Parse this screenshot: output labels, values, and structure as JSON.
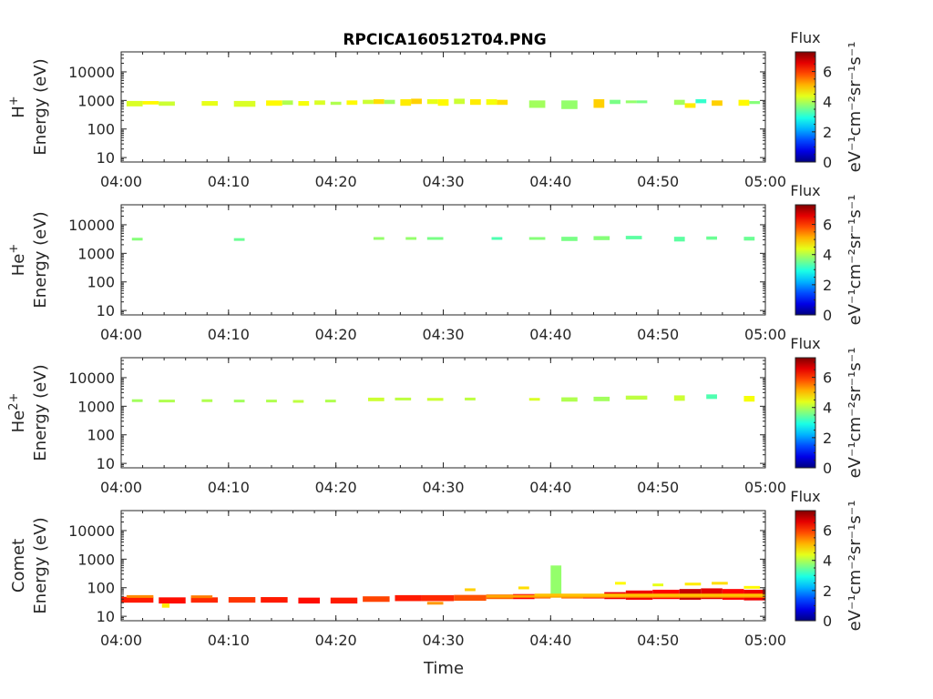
{
  "title": "RPCICA160512T04.PNG",
  "xlabel": "Time",
  "colorbar": {
    "label": "Flux",
    "units": "eV⁻¹cm⁻²sr⁻¹s⁻¹",
    "range": [
      0,
      7.3
    ],
    "ticks": [
      "0",
      "2",
      "4",
      "6"
    ],
    "colormap": "jet"
  },
  "chart_data": [
    {
      "type": "heatmap",
      "ion": "H⁺",
      "ylabel": "Energy (eV)",
      "xlabel": "",
      "x_unit": "minutes after 04:00",
      "xlim": [
        0,
        60
      ],
      "ylim": [
        7,
        50000
      ],
      "yscale": "log",
      "xticks": [
        "04:00",
        "04:10",
        "04:20",
        "04:30",
        "04:40",
        "04:50",
        "05:00"
      ],
      "yticks": [
        "10",
        "100",
        "1000",
        "10000"
      ],
      "cells": [
        [
          0.5,
          2.0,
          620,
          960,
          4.3
        ],
        [
          2.0,
          3.5,
          720,
          950,
          4.6
        ],
        [
          3.5,
          5.0,
          650,
          920,
          4.2
        ],
        [
          7.5,
          9.0,
          650,
          950,
          4.4
        ],
        [
          10.5,
          12.5,
          600,
          960,
          4.3
        ],
        [
          13.5,
          15.0,
          650,
          1000,
          4.6
        ],
        [
          15.0,
          16.0,
          700,
          1000,
          4.0
        ],
        [
          16.5,
          17.5,
          650,
          950,
          4.5
        ],
        [
          18.0,
          19.0,
          700,
          1000,
          4.3
        ],
        [
          19.5,
          20.5,
          700,
          900,
          4.0
        ],
        [
          21.0,
          22.0,
          700,
          1000,
          4.6
        ],
        [
          22.5,
          23.5,
          750,
          1050,
          4.2
        ],
        [
          23.5,
          24.5,
          750,
          1100,
          4.8
        ],
        [
          24.5,
          25.5,
          750,
          1050,
          3.9
        ],
        [
          26.0,
          27.0,
          650,
          1100,
          4.7
        ],
        [
          27.0,
          28.0,
          750,
          1150,
          4.9
        ],
        [
          28.5,
          29.5,
          750,
          1100,
          4.4
        ],
        [
          29.5,
          30.5,
          650,
          1100,
          4.6
        ],
        [
          31.0,
          32.0,
          750,
          1150,
          4.2
        ],
        [
          32.5,
          33.5,
          700,
          1100,
          4.7
        ],
        [
          34.0,
          35.0,
          700,
          1100,
          4.5
        ],
        [
          35.0,
          36.0,
          700,
          1050,
          4.8
        ],
        [
          38.0,
          39.5,
          550,
          1000,
          3.9
        ],
        [
          41.0,
          42.5,
          500,
          1000,
          3.8
        ],
        [
          44.0,
          45.0,
          550,
          1100,
          4.9
        ],
        [
          45.5,
          46.5,
          750,
          1050,
          3.6
        ],
        [
          47.0,
          48.0,
          800,
          1000,
          3.8
        ],
        [
          48.0,
          49.0,
          800,
          1000,
          3.6
        ],
        [
          51.5,
          52.5,
          700,
          1050,
          3.9
        ],
        [
          52.5,
          53.5,
          550,
          800,
          4.7
        ],
        [
          53.5,
          54.5,
          800,
          1100,
          3.1
        ],
        [
          55.0,
          56.0,
          650,
          1000,
          4.9
        ],
        [
          57.5,
          58.5,
          650,
          1050,
          4.6
        ],
        [
          58.5,
          59.5,
          750,
          950,
          3.7
        ]
      ]
    },
    {
      "type": "heatmap",
      "ion": "He⁺",
      "ylabel": "Energy (eV)",
      "xlabel": "",
      "x_unit": "minutes after 04:00",
      "xlim": [
        0,
        60
      ],
      "ylim": [
        7,
        50000
      ],
      "yscale": "log",
      "xticks": [
        "04:00",
        "04:10",
        "04:20",
        "04:30",
        "04:40",
        "04:50",
        "05:00"
      ],
      "yticks": [
        "10",
        "100",
        "1000",
        "10000"
      ],
      "cells": [
        [
          1.0,
          2.0,
          3000,
          3500,
          3.7
        ],
        [
          10.5,
          11.5,
          3000,
          3400,
          3.5
        ],
        [
          23.5,
          24.5,
          3200,
          3700,
          3.8
        ],
        [
          26.5,
          27.5,
          3200,
          3700,
          3.8
        ],
        [
          28.5,
          30.0,
          3200,
          3700,
          3.6
        ],
        [
          34.5,
          35.5,
          3200,
          3700,
          3.3
        ],
        [
          38.0,
          39.5,
          3200,
          3700,
          3.7
        ],
        [
          41.0,
          42.5,
          2700,
          3800,
          3.6
        ],
        [
          44.0,
          45.5,
          2900,
          4000,
          3.7
        ],
        [
          47.0,
          48.5,
          3100,
          4100,
          3.4
        ],
        [
          51.5,
          52.5,
          2600,
          3800,
          3.4
        ],
        [
          54.5,
          55.5,
          3000,
          3900,
          3.5
        ],
        [
          58.0,
          59.0,
          2800,
          3800,
          3.5
        ]
      ]
    },
    {
      "type": "heatmap",
      "ion": "He²⁺",
      "ylabel": "Energy (eV)",
      "xlabel": "",
      "x_unit": "minutes after 04:00",
      "xlim": [
        0,
        60
      ],
      "ylim": [
        7,
        50000
      ],
      "yscale": "log",
      "xticks": [
        "04:00",
        "04:10",
        "04:20",
        "04:30",
        "04:40",
        "04:50",
        "05:00"
      ],
      "yticks": [
        "10",
        "100",
        "1000",
        "10000"
      ],
      "cells": [
        [
          1.0,
          2.0,
          1450,
          1750,
          3.9
        ],
        [
          3.5,
          5.0,
          1400,
          1700,
          4.0
        ],
        [
          7.5,
          8.5,
          1400,
          1750,
          4.0
        ],
        [
          10.5,
          11.5,
          1450,
          1700,
          3.9
        ],
        [
          13.5,
          14.5,
          1450,
          1700,
          4.0
        ],
        [
          16.0,
          17.0,
          1400,
          1650,
          4.1
        ],
        [
          19.0,
          20.0,
          1450,
          1700,
          4.0
        ],
        [
          23.0,
          24.5,
          1500,
          2000,
          4.2
        ],
        [
          25.5,
          27.0,
          1600,
          2000,
          4.1
        ],
        [
          28.5,
          30.0,
          1550,
          1950,
          4.2
        ],
        [
          32.0,
          33.0,
          1600,
          2000,
          4.1
        ],
        [
          38.0,
          39.0,
          1600,
          1950,
          4.3
        ],
        [
          41.0,
          42.5,
          1450,
          2050,
          4.0
        ],
        [
          44.0,
          45.5,
          1500,
          2150,
          3.9
        ],
        [
          47.0,
          49.0,
          1700,
          2350,
          4.1
        ],
        [
          51.5,
          52.5,
          1550,
          2400,
          4.2
        ],
        [
          54.5,
          55.5,
          1800,
          2600,
          3.3
        ],
        [
          58.0,
          59.0,
          1450,
          2300,
          4.5
        ]
      ]
    },
    {
      "type": "heatmap",
      "ion": "Comet",
      "ylabel": "Energy (eV)",
      "xlabel": "Time",
      "x_unit": "minutes after 04:00",
      "xlim": [
        0,
        60
      ],
      "ylim": [
        7,
        50000
      ],
      "yscale": "log",
      "xticks": [
        "04:00",
        "04:10",
        "04:20",
        "04:30",
        "04:40",
        "04:50",
        "05:00"
      ],
      "yticks": [
        "10",
        "100",
        "1000",
        "10000"
      ],
      "cells": [
        [
          0.0,
          3.0,
          30,
          48,
          6.2
        ],
        [
          3.5,
          6.0,
          28,
          46,
          6.3
        ],
        [
          6.5,
          9.0,
          30,
          46,
          6.1
        ],
        [
          10.0,
          12.5,
          30,
          47,
          6.0
        ],
        [
          13.0,
          15.5,
          30,
          47,
          6.2
        ],
        [
          16.5,
          18.5,
          28,
          45,
          6.3
        ],
        [
          19.5,
          22.0,
          28,
          45,
          6.2
        ],
        [
          22.5,
          25.0,
          32,
          50,
          5.9
        ],
        [
          25.5,
          28.0,
          34,
          55,
          6.2
        ],
        [
          28.0,
          31.0,
          34,
          55,
          6.1
        ],
        [
          31.0,
          34.0,
          35,
          56,
          5.8
        ],
        [
          34.0,
          36.5,
          40,
          58,
          5.7
        ],
        [
          36.5,
          38.5,
          40,
          60,
          6.4
        ],
        [
          38.5,
          40.0,
          42,
          58,
          5.8
        ],
        [
          40.0,
          41.0,
          45,
          600,
          3.8
        ],
        [
          41.0,
          43.0,
          42,
          58,
          5.7
        ],
        [
          43.0,
          45.0,
          42,
          60,
          6.3
        ],
        [
          45.0,
          47.0,
          40,
          70,
          6.5
        ],
        [
          47.0,
          49.5,
          38,
          80,
          6.5
        ],
        [
          49.5,
          52.0,
          40,
          85,
          6.4
        ],
        [
          52.0,
          54.0,
          38,
          90,
          6.8
        ],
        [
          54.0,
          56.0,
          40,
          95,
          6.6
        ],
        [
          56.0,
          58.0,
          38,
          90,
          6.4
        ],
        [
          58.0,
          60.0,
          36,
          85,
          6.5
        ],
        [
          34.0,
          60.0,
          48,
          56,
          5.2
        ],
        [
          38.5,
          60.0,
          55,
          62,
          5.0
        ],
        [
          0.5,
          3.0,
          48,
          55,
          5.4
        ],
        [
          3.8,
          4.5,
          20,
          28,
          4.7
        ],
        [
          6.5,
          8.5,
          48,
          54,
          5.5
        ],
        [
          28.5,
          30.0,
          26,
          32,
          5.3
        ],
        [
          32.0,
          33.0,
          80,
          95,
          4.9
        ],
        [
          37.0,
          38.0,
          95,
          110,
          4.8
        ],
        [
          46.0,
          47.0,
          140,
          160,
          4.6
        ],
        [
          49.5,
          50.5,
          120,
          140,
          4.4
        ],
        [
          52.5,
          54.0,
          120,
          150,
          4.7
        ],
        [
          55.0,
          56.5,
          130,
          160,
          4.8
        ],
        [
          58.0,
          59.5,
          95,
          115,
          4.6
        ]
      ]
    }
  ]
}
